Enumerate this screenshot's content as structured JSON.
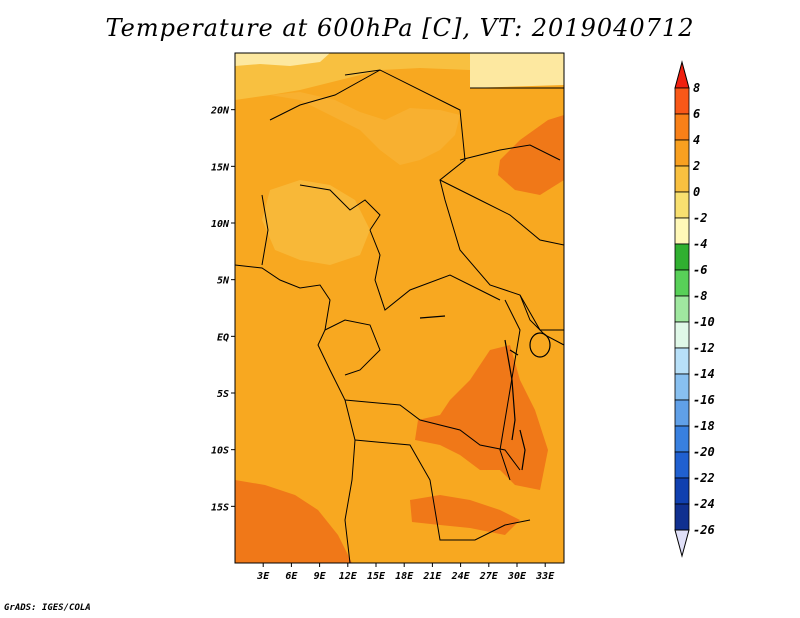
{
  "title": "Temperature at 600hPa [C], VT: 2019040712",
  "credit": "GrADS: IGES/COLA",
  "map": {
    "lon_range": [
      0,
      35
    ],
    "lat_range": [
      -20,
      25
    ],
    "base_color": "#f8a820",
    "lat_ticks": [
      {
        "value": 20,
        "label": "20N"
      },
      {
        "value": 15,
        "label": "15N"
      },
      {
        "value": 10,
        "label": "10N"
      },
      {
        "value": 5,
        "label": "5N"
      },
      {
        "value": 0,
        "label": "EQ"
      },
      {
        "value": -5,
        "label": "5S"
      },
      {
        "value": -10,
        "label": "10S"
      },
      {
        "value": -15,
        "label": "15S"
      }
    ],
    "lon_ticks": [
      {
        "value": 3,
        "label": "3E"
      },
      {
        "value": 6,
        "label": "6E"
      },
      {
        "value": 9,
        "label": "9E"
      },
      {
        "value": 12,
        "label": "12E"
      },
      {
        "value": 15,
        "label": "15E"
      },
      {
        "value": 18,
        "label": "18E"
      },
      {
        "value": 21,
        "label": "21E"
      },
      {
        "value": 24,
        "label": "24E"
      },
      {
        "value": 27,
        "label": "27E"
      },
      {
        "value": 30,
        "label": "30E"
      },
      {
        "value": 33,
        "label": "33E"
      }
    ]
  },
  "colorbar": {
    "labels": [
      "8",
      "6",
      "4",
      "2",
      "0",
      "-2",
      "-4",
      "-6",
      "-8",
      "-10",
      "-12",
      "-14",
      "-16",
      "-18",
      "-20",
      "-22",
      "-24",
      "-26"
    ],
    "colors": [
      "#f02010",
      "#f85818",
      "#f88018",
      "#f8a020",
      "#f8c040",
      "#f8e070",
      "#fff8b8",
      "#30b030",
      "#58d058",
      "#a0e8a0",
      "#e0f8e8",
      "#b8e0f8",
      "#88c0f0",
      "#60a0e8",
      "#3880e0",
      "#2060d0",
      "#1040b0",
      "#103090",
      "#080860",
      "#e0e0f8"
    ]
  }
}
